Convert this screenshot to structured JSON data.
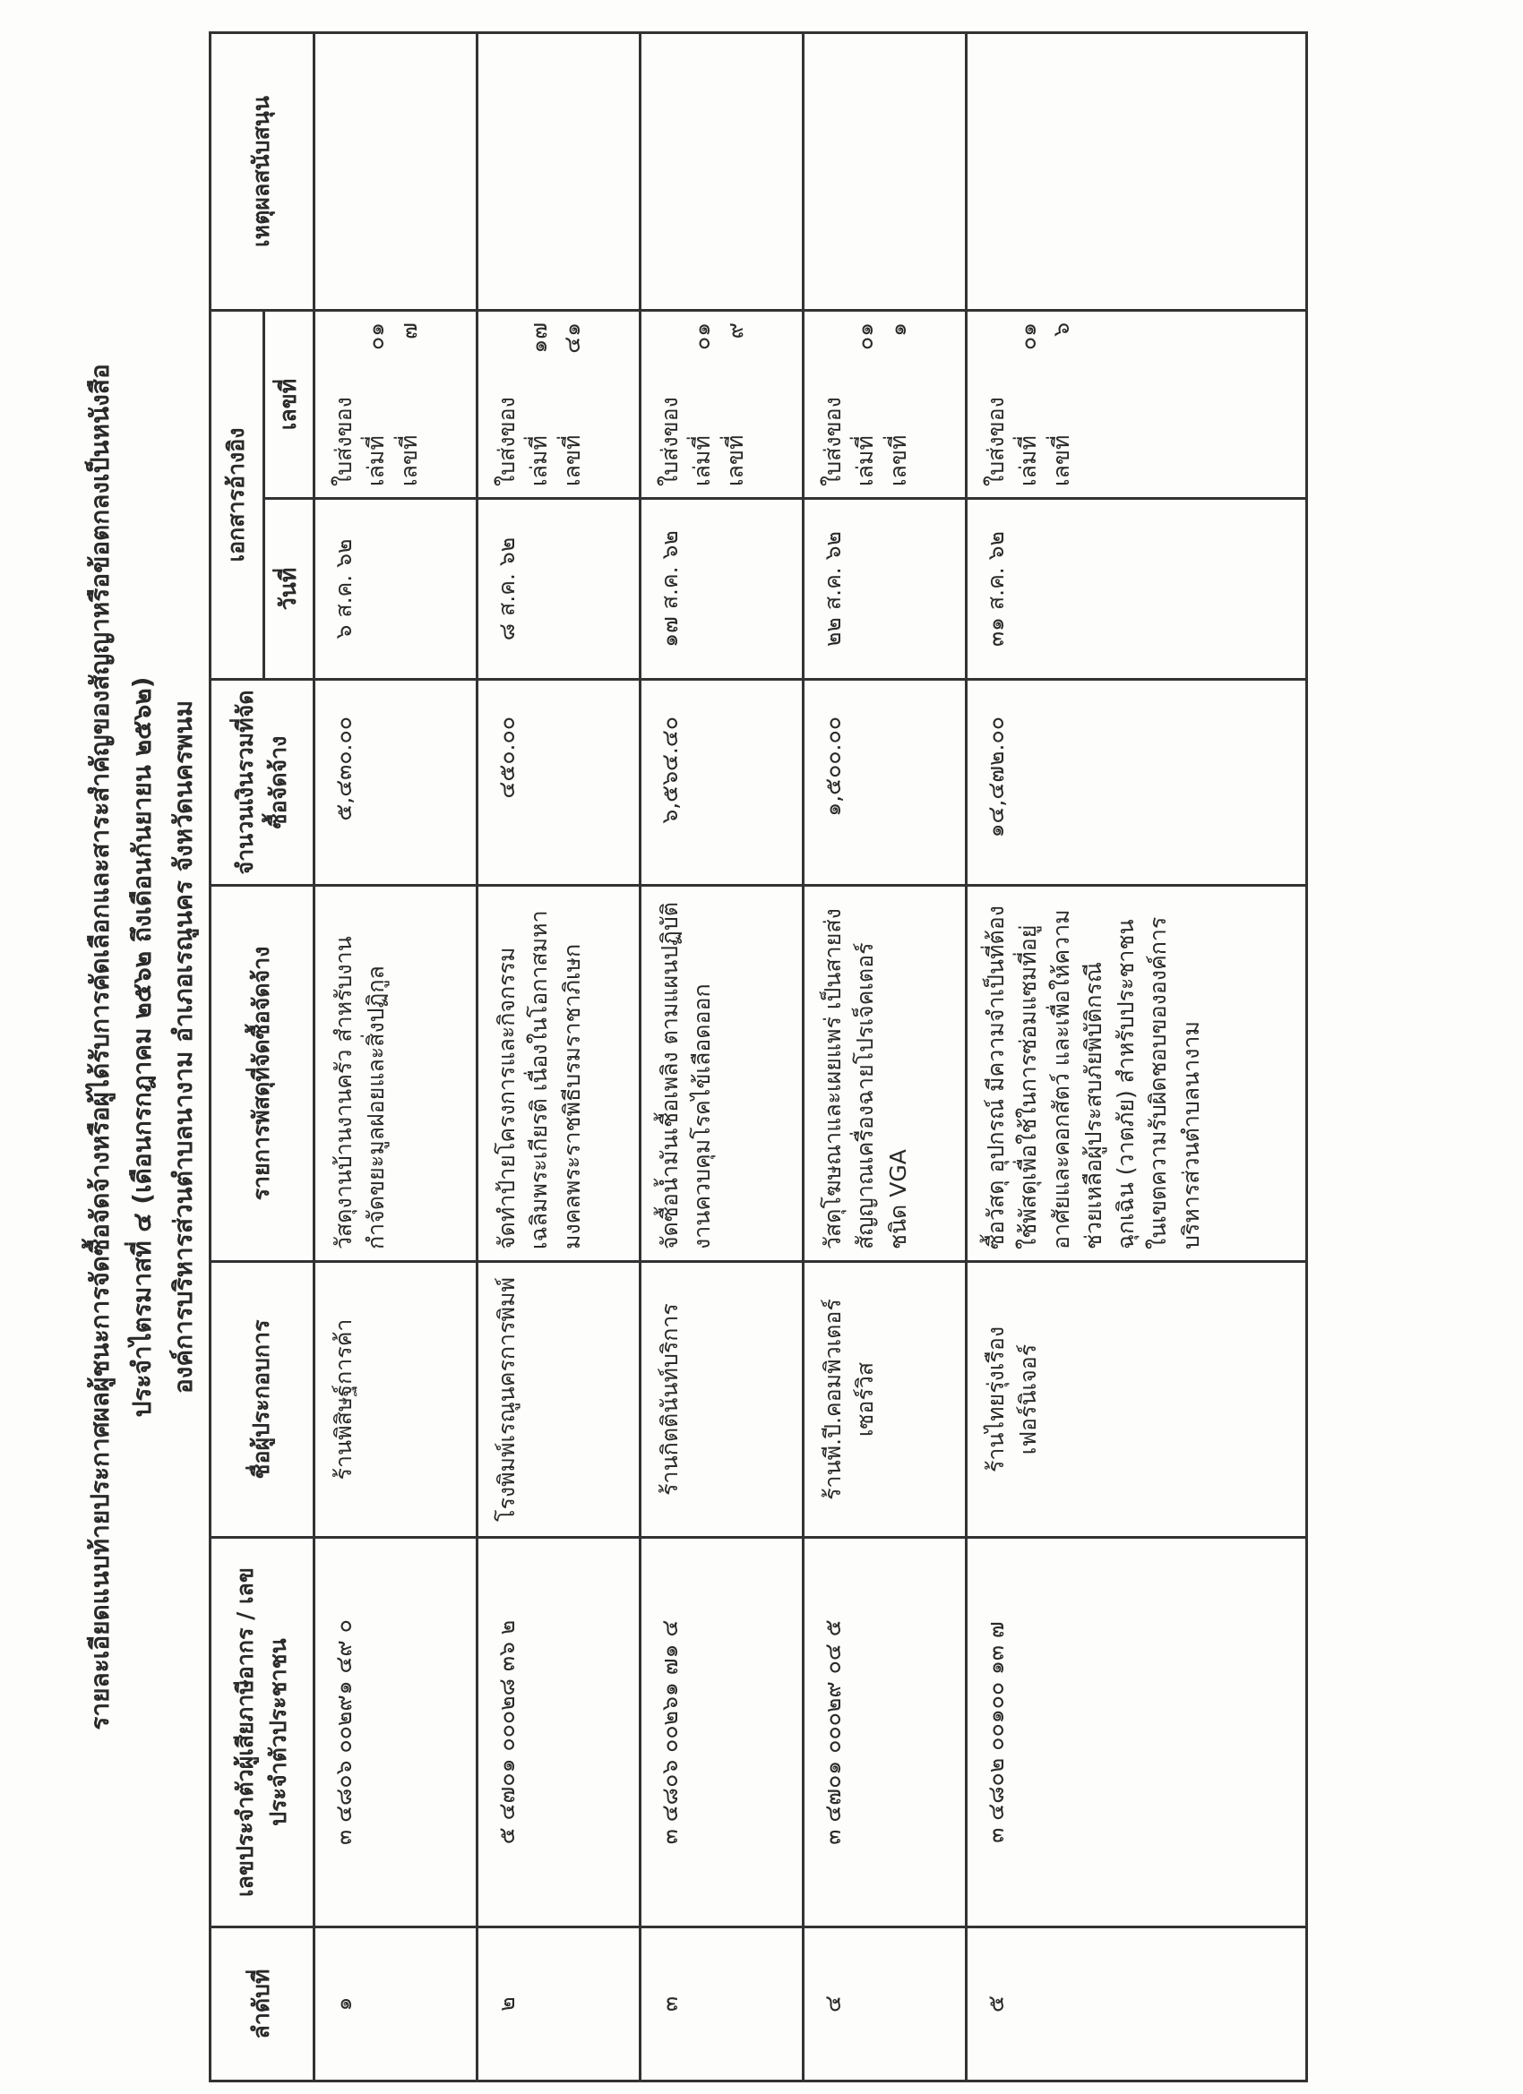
{
  "title": {
    "line1": "รายละเอียดแนบท้ายประกาศผลผู้ชนะการจัดซื้อจัดจ้างหรือผู้ได้รับการคัดเลือกและสาระสำคัญของสัญญาหรือข้อตกลงเป็นหนังสือ",
    "line2": "ประจำไตรมาสที่ ๔ (เดือนกรกฎาคม ๒๕๖๒  ถึงเดือนกันยายน ๒๕๖๒)",
    "line3": "องค์การบริหารส่วนตำบลนางาม   อำเภอเรณูนคร   จังหวัดนครพนม"
  },
  "headers": {
    "no": "ลำดับที่",
    "tax_id": "เลขประจำตัวผู้เสียภาษีอากร / เลขประจำตัวประชาชน",
    "vendor": "ชื่อผู้ประกอบการ",
    "items": "รายการพัสดุที่จัดซื้อจัดจ้าง",
    "amount": "จำนวนเงินรวมที่จัดซื้อจัดจ้าง",
    "ref": "เอกสารอ้างอิง",
    "ref_date": "วันที่",
    "ref_no": "เลขที่",
    "reason": "เหตุผลสนับสนุน"
  },
  "rows": [
    {
      "no": "๑",
      "tax_id": "๓ ๔๘๐๖ ๐๐๒๙๑ ๔๙ ๐",
      "vendor": "ร้านพิสิษฐ์การค้า",
      "items": "วัสดุงานบ้านงานครัว  สำหรับงานกำจัดขยะมูลฝอยและสิ่งปฏิกูล",
      "amount": "๕,๔๓๐.๐๐",
      "date": "๖ ส.ค. ๖๒",
      "doc": "ใบส่งของ",
      "book_label": "เล่มที่",
      "book": "๐๑",
      "no_label": "เลขที่",
      "doc_no": "๗",
      "reason": ""
    },
    {
      "no": "๒",
      "tax_id": "๕ ๔๗๐๑ ๐๐๐๒๘ ๓๖ ๒",
      "vendor": "โรงพิมพ์เรณูนครการพิมพ์",
      "items": "จัดทำป้ายโครงการและกิจกรรมเฉลิมพระเกียรติ  เนื่องในโอกาสมหามงคลพระราชพิธีบรมราชาภิเษก",
      "amount": "๔๕๐.๐๐",
      "date": "๘ ส.ค. ๖๒",
      "doc": "ใบส่งของ",
      "book_label": "เล่มที่",
      "book": "๑๗",
      "no_label": "เลขที่",
      "doc_no": "๔๑",
      "reason": ""
    },
    {
      "no": "๓",
      "tax_id": "๓ ๔๘๐๖ ๐๐๒๖๑ ๗๑ ๔",
      "vendor": "ร้านกิตตินันท์บริการ",
      "items": "จัดซื้อน้ำมันเชื้อเพลิง  ตามแผนปฏิบัติงานควบคุมโรคไข้เลือดออก",
      "amount": "๖,๕๖๔.๔๐",
      "date": "๑๗ ส.ค. ๖๒",
      "doc": "ใบส่งของ",
      "book_label": "เล่มที่",
      "book": "๐๑",
      "no_label": "เลขที่",
      "doc_no": "๙",
      "reason": ""
    },
    {
      "no": "๔",
      "tax_id": "๓ ๔๗๐๑ ๐๐๐๒๙ ๐๔ ๕",
      "vendor": "ร้านพี.ปี.คอมพิวเตอร์เซอร์วิส",
      "items": "วัสดุโฆษณาและเผยแพร่ เป็นสายส่งสัญญาณเครื่องฉายโปรเจ็คเตอร์  ชนิด VGA",
      "amount": "๑,๕๐๐.๐๐",
      "date": "๒๒ ส.ค. ๖๒",
      "doc": "ใบส่งของ",
      "book_label": "เล่มที่",
      "book": "๐๑",
      "no_label": "เลขที่",
      "doc_no": "๑",
      "reason": ""
    },
    {
      "no": "๕",
      "tax_id": "๓ ๔๘๐๒ ๐๐๑๐๐ ๑๓ ๗",
      "vendor": "ร้านไทยรุ่งเรืองเฟอร์นิเจอร์",
      "items": "ซื้อวัสดุ อุปกรณ์  มีความจำเป็นที่ต้องใช้พัสดุเพื่อใช้ในการซ่อมแซมที่อยู่อาศัยและคอกสัตว์  และเพื่อให้ความช่วยเหลือผู้ประสบภัยพิบัติกรณีฉุกเฉิน (วาตภัย)  สำหรับประชาชนในเขตความรับผิดชอบขององค์การบริหารส่วนตำบลนางาม",
      "amount": "๑๔,๔๗๒.๐๐",
      "date": "๓๑ ส.ค. ๖๒",
      "doc": "ใบส่งของ",
      "book_label": "เล่มที่",
      "book": "๐๑",
      "no_label": "เลขที่",
      "doc_no": "๖",
      "reason": ""
    }
  ]
}
